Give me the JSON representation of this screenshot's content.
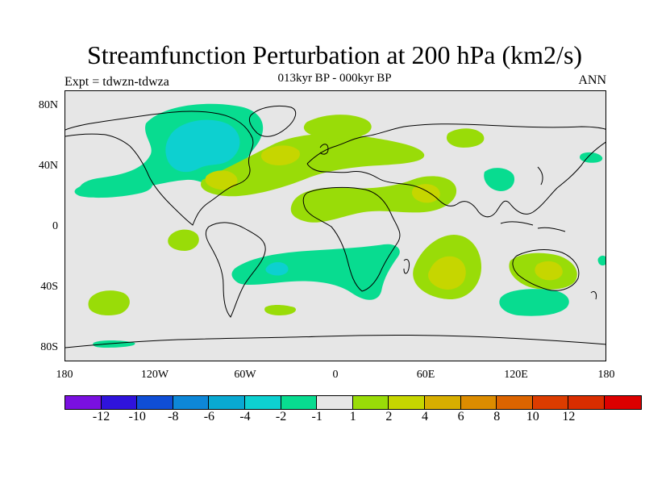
{
  "title": "Streamfunction Perturbation at 200 hPa (km2/s)",
  "subtitle": "013kyr BP - 000kyr BP",
  "experiment_label": "Expt = tdwzn-tdwza",
  "season_label": "ANN",
  "axes": {
    "y_ticks": [
      "80N",
      "40N",
      "0",
      "40S",
      "80S"
    ],
    "x_ticks": [
      "180",
      "120W",
      "60W",
      "0",
      "60E",
      "120E",
      "180"
    ]
  },
  "colorbar": {
    "colors": [
      "#7a10e0",
      "#2f13dc",
      "#0f4ed6",
      "#0d87d8",
      "#09a9d2",
      "#0dd0d0",
      "#08dc90",
      "#e6e6e6",
      "#99dc08",
      "#c6d600",
      "#d7ae00",
      "#dc8c00",
      "#dc6400",
      "#dc3c00",
      "#d92d00",
      "#dc0000"
    ],
    "labels": [
      "-12",
      "-10",
      "-8",
      "-6",
      "-4",
      "-2",
      "-1",
      "1",
      "2",
      "4",
      "6",
      "8",
      "10",
      "12"
    ]
  },
  "chart_data": {
    "type": "filled-contour-map",
    "projection": "cylindrical equidistant",
    "lon_range": [
      -180,
      180
    ],
    "lat_range": [
      -90,
      90
    ],
    "units": "km2/s",
    "levels": [
      -12,
      -10,
      -8,
      -6,
      -4,
      -2,
      -1,
      1,
      2,
      4,
      6,
      8,
      10,
      12
    ],
    "features": [
      {
        "region": "North America / Arctic",
        "lon": -90,
        "lat": 55,
        "min_value": -4
      },
      {
        "region": "Central North Pacific",
        "lon": -140,
        "lat": 28,
        "min_value": -1
      },
      {
        "region": "Mid-latitude North Atlantic",
        "lon": -35,
        "lat": 42,
        "max_value": 4
      },
      {
        "region": "Western Atlantic",
        "lon": -65,
        "lat": 33,
        "max_value": 4
      },
      {
        "region": "Northern Europe",
        "lon": 20,
        "lat": 62,
        "max_value": 2
      },
      {
        "region": "North Africa / Middle East",
        "lon": 50,
        "lat": 22,
        "max_value": 4
      },
      {
        "region": "South Indian Ocean",
        "lon": 85,
        "lat": -28,
        "max_value": 4
      },
      {
        "region": "Australia",
        "lon": 135,
        "lat": -28,
        "max_value": 4
      },
      {
        "region": "South Atlantic",
        "lon": -40,
        "lat": -25,
        "min_value": -4
      },
      {
        "region": "Southern Ocean (south of Australia)",
        "lon": 135,
        "lat": -50,
        "min_value": -1
      },
      {
        "region": "South Pacific",
        "lon": -150,
        "lat": -48,
        "max_value": 2
      }
    ]
  }
}
